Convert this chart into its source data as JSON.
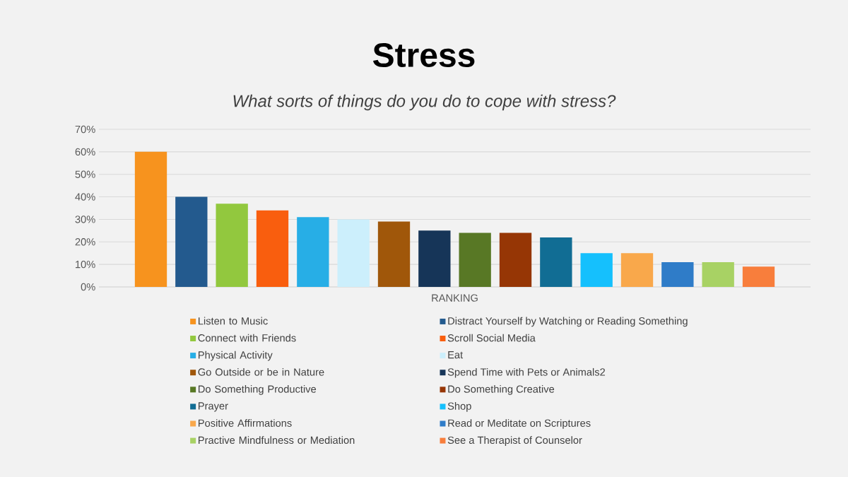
{
  "chart_data": {
    "type": "bar",
    "title": "Stress",
    "subtitle": "What sorts of things do you do to cope with stress?",
    "categories": [
      "RANKING"
    ],
    "series": [
      {
        "name": "Listen to Music",
        "color": "#f7931e",
        "values": [
          60
        ]
      },
      {
        "name": "Distract Yourself by Watching or Reading Something",
        "color": "#235a8e",
        "values": [
          40
        ]
      },
      {
        "name": "Connect with Friends",
        "color": "#92c83e",
        "values": [
          37
        ]
      },
      {
        "name": "Scroll Social Media",
        "color": "#f95e0e",
        "values": [
          34
        ]
      },
      {
        "name": "Physical Activity",
        "color": "#27aee6",
        "values": [
          31
        ]
      },
      {
        "name": "Eat",
        "color": "#cceffc",
        "values": [
          30
        ]
      },
      {
        "name": "Go Outside or be in Nature",
        "color": "#a0570a",
        "values": [
          29
        ]
      },
      {
        "name": "Spend Time with Pets or Animals2",
        "color": "#163558",
        "values": [
          25
        ]
      },
      {
        "name": "Do Something Productive",
        "color": "#587825",
        "values": [
          24
        ]
      },
      {
        "name": "Do Something Creative",
        "color": "#963605",
        "values": [
          24
        ]
      },
      {
        "name": "Prayer",
        "color": "#116d94",
        "values": [
          22
        ]
      },
      {
        "name": "Shop",
        "color": "#15c0fd",
        "values": [
          15
        ]
      },
      {
        "name": "Positive Affirmations",
        "color": "#f9a84b",
        "values": [
          15
        ]
      },
      {
        "name": "Read or Meditate on Scriptures",
        "color": "#2f7cc8",
        "values": [
          11
        ]
      },
      {
        "name": "Practive Mindfulness or Mediation",
        "color": "#a8d264",
        "values": [
          11
        ]
      },
      {
        "name": "See a Therapist of Counselor",
        "color": "#f87e3c",
        "values": [
          9
        ]
      }
    ],
    "ylim": [
      0,
      70
    ],
    "yticks": [
      {
        "value": 0,
        "label": "0%"
      },
      {
        "value": 10,
        "label": "10%"
      },
      {
        "value": 20,
        "label": "20%"
      },
      {
        "value": 30,
        "label": "30%"
      },
      {
        "value": 40,
        "label": "40%"
      },
      {
        "value": 50,
        "label": "50%"
      },
      {
        "value": 60,
        "label": "60%"
      },
      {
        "value": 70,
        "label": "70%"
      }
    ],
    "grid": "y",
    "legend": "bottom"
  }
}
